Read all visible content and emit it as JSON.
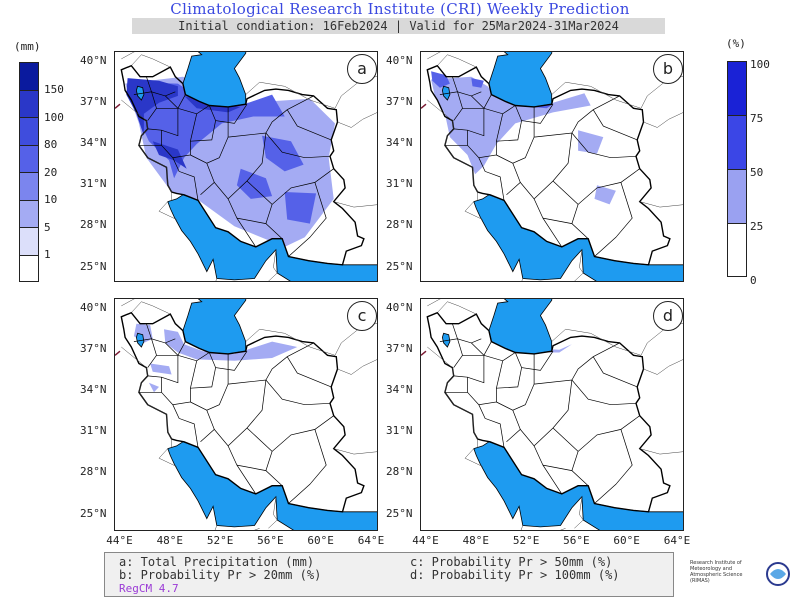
{
  "title": "Climatological Research Institute (CRI) Weekly Prediction",
  "subtitle": "Initial condiation: 16Feb2024 | Valid for 25Mar2024-31Mar2024",
  "left_colorbar": {
    "unit": "(mm)",
    "labels": [
      "150",
      "100",
      "80",
      "20",
      "10",
      "5",
      "1"
    ],
    "colors": [
      "#0a1a9e",
      "#2a37c8",
      "#3f4ddd",
      "#5561e8",
      "#7b85ee",
      "#a4abf3",
      "#dcdffa",
      "#ffffff"
    ]
  },
  "right_colorbar": {
    "unit": "(%)",
    "labels": [
      "100",
      "75",
      "50",
      "25",
      "0"
    ],
    "colors": [
      "#1a22d6",
      "#3b46e6",
      "#9aa1f1",
      "#ffffff"
    ]
  },
  "panels": [
    {
      "letter": "a"
    },
    {
      "letter": "b"
    },
    {
      "letter": "c"
    },
    {
      "letter": "d"
    }
  ],
  "lat_labels": [
    "40°N",
    "37°N",
    "34°N",
    "31°N",
    "28°N",
    "25°N"
  ],
  "lon_labels": [
    "44°E",
    "48°E",
    "52°E",
    "56°E",
    "60°E",
    "64°E"
  ],
  "legend": {
    "a": "a: Total Precipitation (mm)",
    "b": "b: Probability Pr > 20mm (%)",
    "c": "c: Probability Pr > 50mm (%)",
    "d": "d: Probability Pr > 100mm (%)",
    "model": "RegCM 4.7"
  },
  "colors": {
    "water": "#1e9bf0",
    "title": "#3b49e0",
    "border": "#000000",
    "rain_light": "#a4abf3",
    "rain_mid": "#5561e8",
    "rain_dark": "#2a37c8"
  },
  "logo_text": "Research Institute of Meteorology and Atmospheric Science (RIMAS)"
}
